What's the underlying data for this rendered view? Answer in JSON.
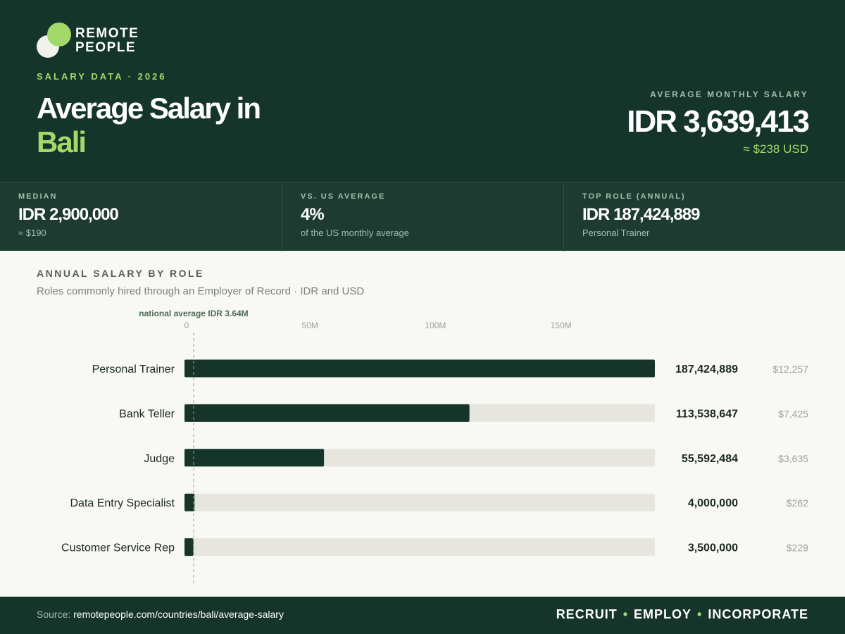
{
  "brand": {
    "line1": "REMOTE",
    "line2": "PEOPLE"
  },
  "hero": {
    "eyebrow": "SALARY DATA · 2026",
    "title": "Average Salary in",
    "city": "Bali",
    "avg_label": "AVERAGE MONTHLY SALARY",
    "avg_value": "IDR 3,639,413",
    "avg_usd": "≈ $238 USD"
  },
  "stats": [
    {
      "label": "MEDIAN",
      "value": "IDR 2,900,000",
      "sub": "≈ $190"
    },
    {
      "label": "VS. US AVERAGE",
      "value": "4%",
      "sub": "of the US monthly average"
    },
    {
      "label": "TOP ROLE (ANNUAL)",
      "value": "IDR 187,424,889",
      "sub": "Personal Trainer"
    }
  ],
  "chart_heading": {
    "title": "ANNUAL SALARY BY ROLE",
    "subtitle": "Roles commonly hired through an Employer of Record · IDR and USD"
  },
  "chart_data": {
    "type": "bar",
    "orientation": "horizontal",
    "categories": [
      "Personal Trainer",
      "Bank Teller",
      "Judge",
      "Data Entry Specialist",
      "Customer Service Rep"
    ],
    "values": [
      187424889,
      113538647,
      55592484,
      4000000,
      3500000
    ],
    "value_labels": [
      "187,424,889",
      "113,538,647",
      "55,592,484",
      "4,000,000",
      "3,500,000"
    ],
    "usd_labels": [
      "$12,257",
      "$7,425",
      "$3,635",
      "$262",
      "$229"
    ],
    "x_ticks": [
      0,
      50000000,
      100000000,
      150000000
    ],
    "x_tick_labels": [
      "0",
      "50M",
      "100M",
      "150M"
    ],
    "xlim": [
      0,
      187424889
    ],
    "reference_line": {
      "value": 3640000,
      "label": "national average IDR 3.64M"
    },
    "colors": {
      "bar": "#15342a",
      "track": "#e6e6de",
      "reference": "#9aa39c"
    }
  },
  "footer": {
    "source_prefix": "Source:",
    "source_url": "remotepeople.com/countries/bali/average-salary",
    "tag1": "RECRUIT",
    "tag2": "EMPLOY",
    "tag3": "INCORPORATE",
    "separator": "•"
  }
}
